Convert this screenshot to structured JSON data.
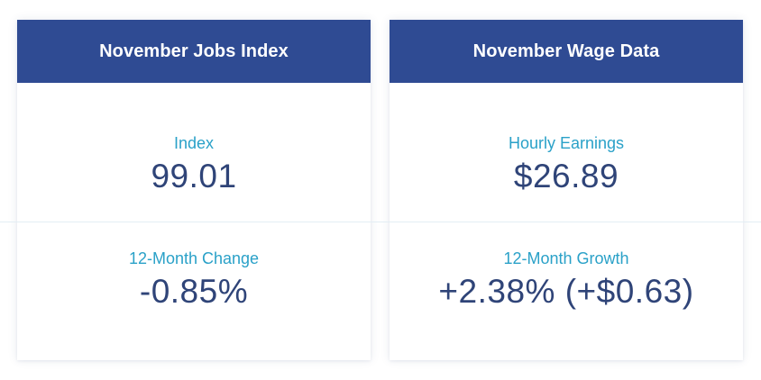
{
  "jobs_card": {
    "title": "November Jobs Index",
    "stat1": {
      "label": "Index",
      "value": "99.01"
    },
    "stat2": {
      "label": "12-Month Change",
      "value": "-0.85%"
    }
  },
  "wage_card": {
    "title": "November Wage Data",
    "stat1": {
      "label": "Hourly Earnings",
      "value": "$26.89"
    },
    "stat2": {
      "label": "12-Month Growth",
      "value": "+2.38% (+$0.63)"
    }
  },
  "colors": {
    "header_bg": "#2f4b93",
    "label": "#2aa1c8",
    "value": "#2f4478"
  }
}
